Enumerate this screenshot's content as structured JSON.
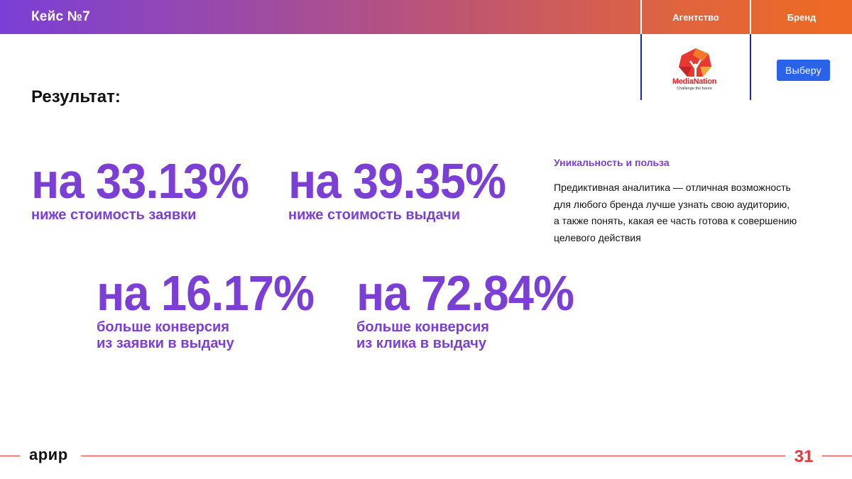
{
  "header": {
    "case_title": "Кейс №7",
    "col_agency": "Агентство",
    "col_brand": "Бренд"
  },
  "agency_logo": {
    "name": "MediaNation",
    "tagline": "Challenge the future"
  },
  "brand_logo": {
    "label": "Выберу"
  },
  "result_title": "Результат:",
  "stats": [
    {
      "value": "на 33.13%",
      "caption_lines": [
        "ниже стоимость заявки"
      ]
    },
    {
      "value": "на 39.35%",
      "caption_lines": [
        "ниже стоимость выдачи"
      ]
    },
    {
      "value": "на 16.17%",
      "caption_lines": [
        "больше конверсия",
        "из заявки в выдачу"
      ]
    },
    {
      "value": "на 72.84%",
      "caption_lines": [
        "больше конверсия",
        "из клика в выдачу"
      ]
    }
  ],
  "side_note": {
    "title": "Уникальность и польза",
    "lines": [
      "Предиктивная аналитика — отличная возможность",
      "для любого бренда лучше узнать свою аудиторию,",
      "а также понять, какая ее часть готова к совершению",
      "целевого действия"
    ]
  },
  "footer": {
    "logo": "арир",
    "page_number": "31"
  },
  "colors": {
    "accent_purple": "#7b3fd6",
    "accent_red": "#e0393e",
    "brand_blue": "#2b63e8"
  }
}
